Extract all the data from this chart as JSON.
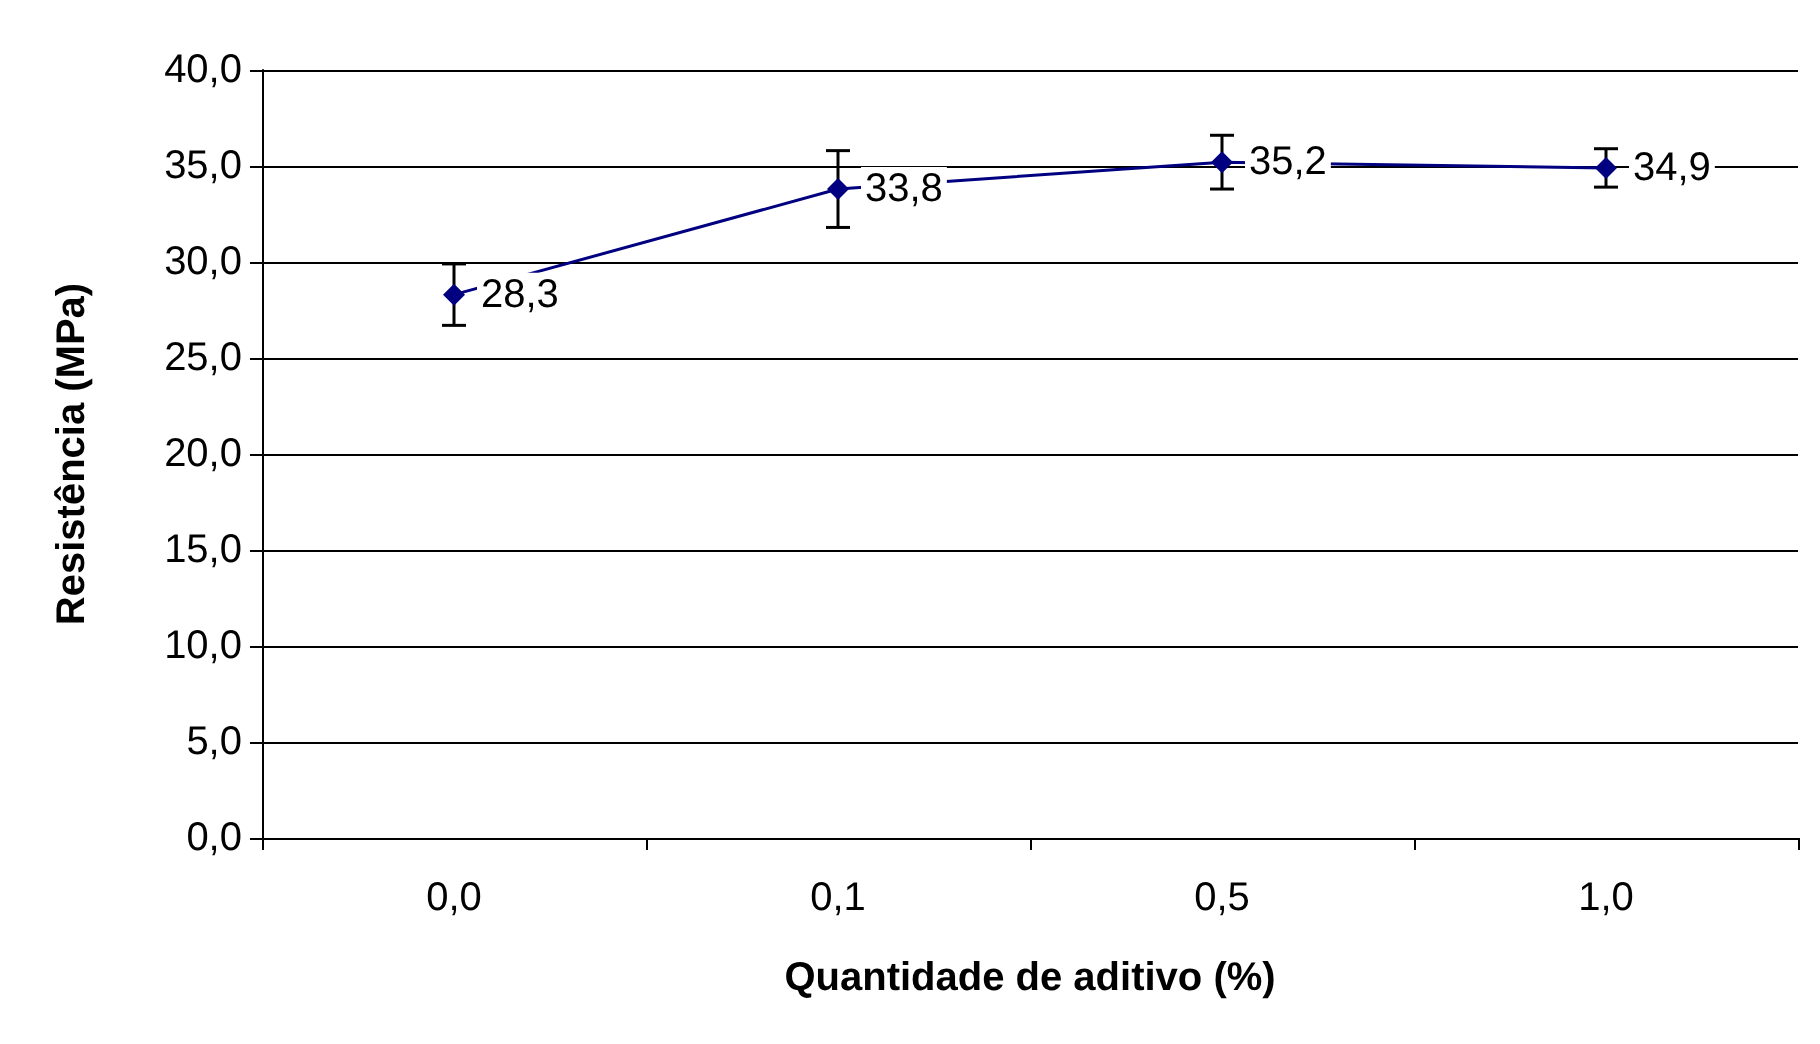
{
  "chart_data": {
    "type": "line",
    "xlabel": "Quantidade de aditivo (%)",
    "ylabel": "Resistência (MPa)",
    "categories": [
      "0,0",
      "0,1",
      "0,5",
      "1,0"
    ],
    "series": [
      {
        "color": "#000080",
        "values": [
          28.3,
          33.8,
          35.2,
          34.9
        ],
        "value_labels": [
          "28,3",
          "33,8",
          "35,2",
          "34,9"
        ],
        "errors": [
          1.6,
          2.0,
          1.4,
          1.0
        ]
      }
    ],
    "ylim": [
      0,
      40
    ],
    "yticks": [
      {
        "value": 0,
        "label": "0,0"
      },
      {
        "value": 5,
        "label": "5,0"
      },
      {
        "value": 10,
        "label": "10,0"
      },
      {
        "value": 15,
        "label": "15,0"
      },
      {
        "value": 20,
        "label": "20,0"
      },
      {
        "value": 25,
        "label": "25,0"
      },
      {
        "value": 30,
        "label": "30,0"
      },
      {
        "value": 35,
        "label": "35,0"
      },
      {
        "value": 40,
        "label": "40,0"
      }
    ],
    "grid": "y",
    "marker": "diamond",
    "line_style": "solid",
    "legend": false
  }
}
